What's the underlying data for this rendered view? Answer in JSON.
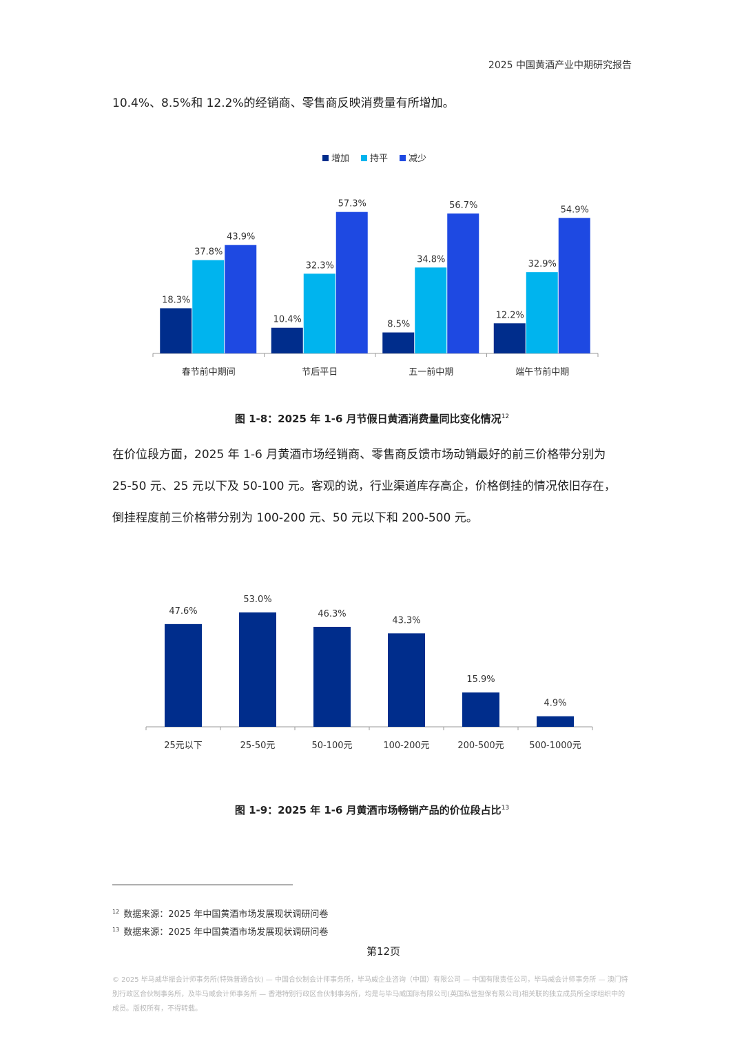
{
  "header": {
    "title": "2025 中国黄酒产业中期研究报告"
  },
  "intro_line": "10.4%、8.5%和 12.2%的经销商、零售商反映消费量有所增加。",
  "figure1": {
    "caption": "图 1-8：2025 年 1-6 月节假日黄酒消费量同比变化情况",
    "footnote_ref": "12"
  },
  "paragraph": {
    "line1": "在价位段方面，2025 年 1-6 月黄酒市场经销商、零售商反馈市场动销最好的前三价格带分别为",
    "line2": "25-50 元、25 元以下及 50-100 元。客观的说，行业渠道库存高企，价格倒挂的情况依旧存在，",
    "line3": "倒挂程度前三价格带分别为 100-200 元、50 元以下和 200-500 元。"
  },
  "figure2": {
    "caption": "图 1-9：2025 年 1-6 月黄酒市场畅销产品的价位段占比",
    "footnote_ref": "13"
  },
  "footnotes": [
    {
      "num": "12",
      "text": "数据来源：2025 年中国黄酒市场发展现状调研问卷"
    },
    {
      "num": "13",
      "text": "数据来源：2025 年中国黄酒市场发展现状调研问卷"
    }
  ],
  "page_number": "第12页",
  "copyright": "© 2025 毕马威华振会计师事务所(特殊普通合伙) — 中国合伙制会计师事务所，毕马威企业咨询（中国）有限公司 — 中国有限责任公司，毕马威会计师事务所 — 澳门特别行政区合伙制事务所，及毕马威会计师事务所 — 香港特别行政区合伙制事务所，均是与毕马威国际有限公司(英国私营担保有限公司)相关联的独立成员所全球组织中的成员。版权所有，不得转载。",
  "chart_data": [
    {
      "type": "bar",
      "categories": [
        "春节前中期间",
        "节后平日",
        "五一前中期",
        "端午节前中期"
      ],
      "series": [
        {
          "name": "增加",
          "values": [
            18.3,
            10.4,
            8.5,
            12.2
          ],
          "color": "#002d8c",
          "labels": [
            "18.3%",
            "10.4%",
            "8.5%",
            "12.2%"
          ]
        },
        {
          "name": "持平",
          "values": [
            37.8,
            32.3,
            34.8,
            32.9
          ],
          "color": "#00b4ee",
          "labels": [
            "37.8%",
            "32.3%",
            "34.8%",
            "32.9%"
          ]
        },
        {
          "name": "减少",
          "values": [
            43.9,
            57.3,
            56.7,
            54.9
          ],
          "color": "#1e49e2",
          "labels": [
            "43.9%",
            "57.3%",
            "56.7%",
            "54.9%"
          ]
        }
      ],
      "ylim": [
        0,
        60
      ],
      "legend": "top-center",
      "grid": false
    },
    {
      "type": "bar",
      "categories": [
        "25元以下",
        "25-50元",
        "50-100元",
        "100-200元",
        "200-500元",
        "500-1000元"
      ],
      "values": [
        47.6,
        53.0,
        46.3,
        43.3,
        15.9,
        4.9
      ],
      "labels": [
        "47.6%",
        "53.0%",
        "46.3%",
        "43.3%",
        "15.9%",
        "4.9%"
      ],
      "color": "#002d8c",
      "ylim": [
        0,
        60
      ],
      "grid": false
    }
  ]
}
